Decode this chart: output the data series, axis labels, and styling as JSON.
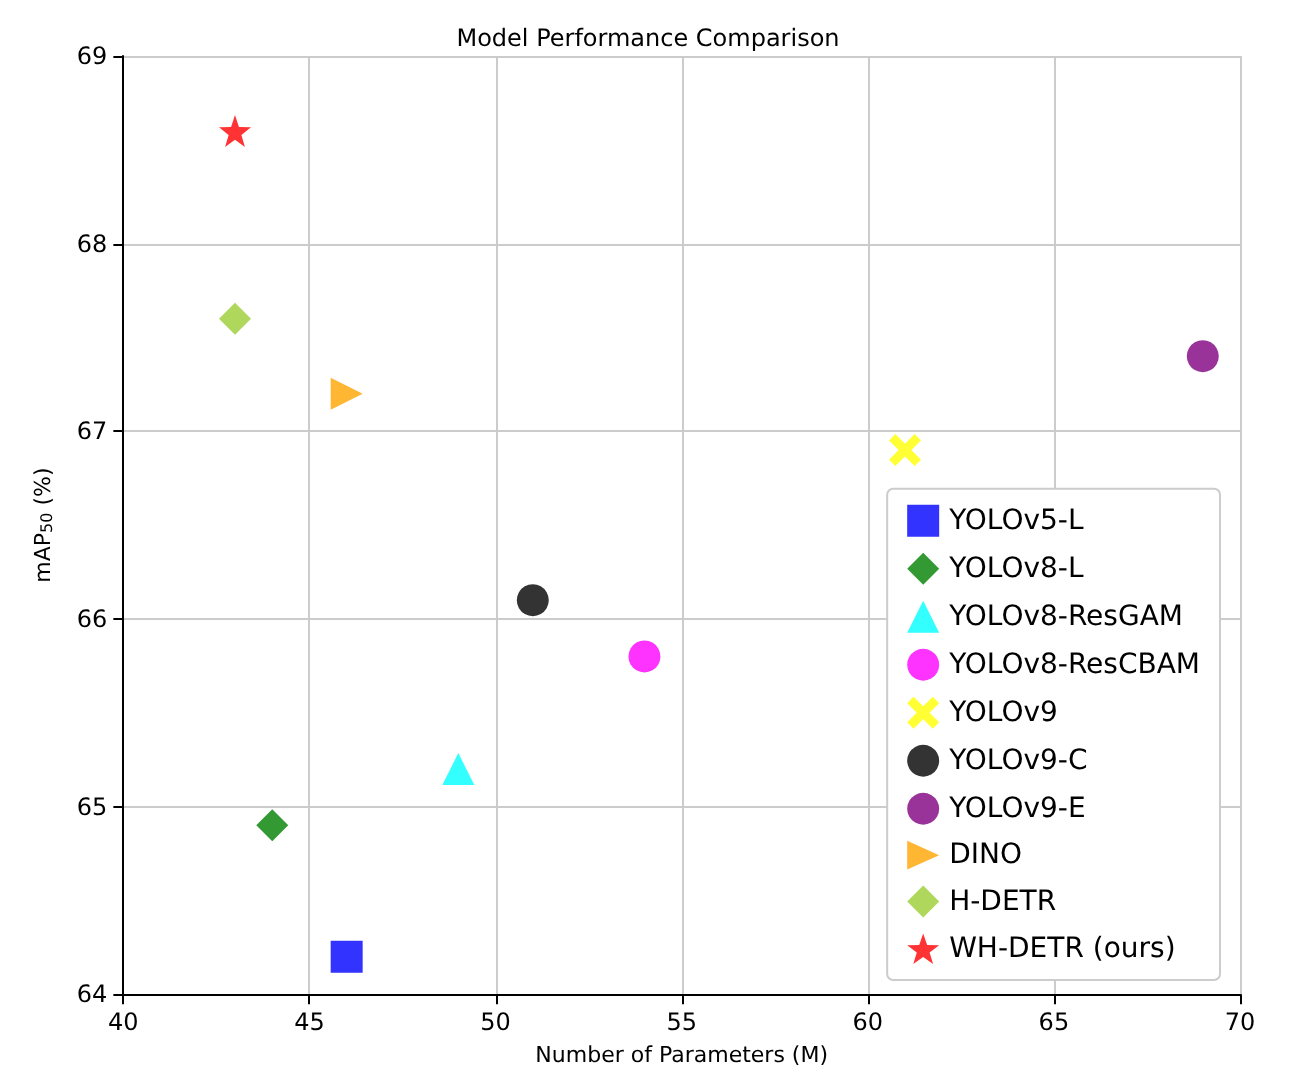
{
  "chart_data": {
    "type": "scatter",
    "title": "Model Performance Comparison",
    "xlabel": "Number of Parameters (M)",
    "ylabel": "mAP$_{50}$ (%)",
    "xlim": [
      40,
      70
    ],
    "xticks": [
      40,
      45,
      50,
      55,
      60,
      65,
      70
    ],
    "ylim": [
      64,
      69
    ],
    "yticks": [
      64,
      65,
      66,
      67,
      68,
      69
    ],
    "grid": true,
    "legend": "bottom right",
    "series": [
      {
        "name": "YOLOv5-L",
        "color": "#0000ff",
        "marker": "square",
        "x": [
          46
        ],
        "values": [
          64.2
        ]
      },
      {
        "name": "YOLOv8-L",
        "color": "#008000",
        "marker": "diamond",
        "x": [
          44
        ],
        "values": [
          64.9
        ]
      },
      {
        "name": "YOLOv8-ResGAM",
        "color": "#00ffff",
        "marker": "triangle",
        "x": [
          49
        ],
        "values": [
          65.2
        ]
      },
      {
        "name": "YOLOv8-ResCBAM",
        "color": "#ff00ff",
        "x": [
          54
        ],
        "values": [
          65.8
        ]
      },
      {
        "name": "YOLOv9",
        "color": "#ffff00",
        "marker": "cross",
        "x": [
          61
        ],
        "values": [
          66.9
        ]
      },
      {
        "name": "YOLOv9-C",
        "color": "#000000",
        "marker": "circle",
        "x": [
          51
        ],
        "values": [
          66.1
        ]
      },
      {
        "name": "YOLOv9-E",
        "color": "#800080",
        "x": [
          69
        ],
        "values": [
          67.4
        ]
      },
      {
        "name": "DINO",
        "color": "#ffa500",
        "marker": "triangle-right",
        "x": [
          46
        ],
        "values": [
          67.2
        ]
      },
      {
        "name": "H-DETR",
        "color": "#9acd32",
        "marker": "diamond",
        "x": [
          43
        ],
        "values": [
          67.6
        ]
      },
      {
        "name": "WH-DETR (ours)",
        "color": "#ff0000",
        "marker": "star",
        "x": [
          43
        ],
        "values": [
          68.6
        ]
      }
    ]
  }
}
